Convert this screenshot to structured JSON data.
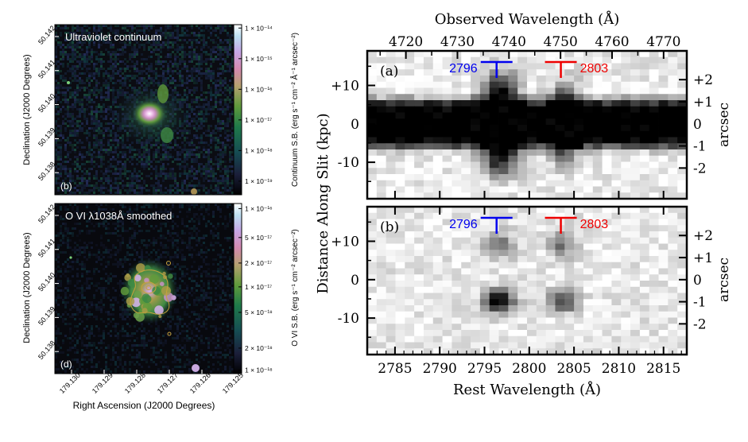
{
  "chart_data": [
    {
      "type": "heatmap",
      "panel": "(b)",
      "label": "Ultraviolet continuum",
      "xlabel": "",
      "ylabel": "Declination (J2000 Degrees)",
      "yticks": [
        "50.142",
        "50.141",
        "50.140",
        "50.139",
        "50.138"
      ],
      "colorbar_label": "Continuum S.B. (erg s⁻¹ cm⁻² Å⁻¹ arcsec⁻²)",
      "colorbar_ticks": [
        "1 × 10⁻¹⁴",
        "1 × 10⁻¹⁵",
        "1 × 10⁻¹⁶",
        "1 × 10⁻¹⁷",
        "1 × 10⁻¹⁸",
        "1 × 10⁻¹⁹"
      ],
      "colormap": [
        "#000000",
        "#1b1f3a",
        "#164c53",
        "#1f7a4a",
        "#5f9a3c",
        "#b6a070",
        "#d48ab0",
        "#c6a6e6",
        "#bcdff2",
        "#ffffff"
      ]
    },
    {
      "type": "heatmap",
      "panel": "(d)",
      "label": "O VI λ1038Å smoothed",
      "xlabel": "Right Ascension (J2000 Degrees)",
      "ylabel": "Declination (J2000 Degrees)",
      "xticks": [
        "179.130",
        "179.129",
        "179.128",
        "179.127",
        "179.126",
        "179.125"
      ],
      "yticks": [
        "50.142",
        "50.141",
        "50.140",
        "50.139",
        "50.138"
      ],
      "colorbar_label": "O VI S.B. (erg s⁻¹ cm⁻² arcsec⁻²)",
      "colorbar_ticks": [
        "1 × 10⁻¹⁶",
        "5 × 10⁻¹⁷",
        "2 × 10⁻¹⁷",
        "1 × 10⁻¹⁷",
        "5 × 10⁻¹⁸",
        "2 × 10⁻¹⁸",
        "1 × 10⁻¹⁸"
      ]
    },
    {
      "type": "heatmap",
      "panel": "(a)",
      "top_xlabel": "Observed Wavelength (Å)",
      "top_xticks": [
        4720,
        4730,
        4740,
        4750,
        4760,
        4770
      ],
      "top_xlim": [
        4712.5,
        4774.5
      ],
      "ylabel": "Distance Along Slit (kpc)",
      "yticks": [
        10,
        0,
        -10
      ],
      "ylim": [
        -19.5,
        19.0
      ],
      "right_ylabel": "arcsec",
      "right_yticks": [
        "+2",
        "+1",
        "0",
        "-1",
        "-2"
      ],
      "lines": [
        {
          "label": "2796",
          "rest_wavelength": 2796.35,
          "color": "#0000ee"
        },
        {
          "label": "2803",
          "rest_wavelength": 2803.53,
          "color": "#ee0000"
        }
      ]
    },
    {
      "type": "heatmap",
      "panel": "(b)",
      "xlabel": "Rest Wavelength (Å)",
      "xticks": [
        2785,
        2790,
        2795,
        2800,
        2805,
        2810,
        2815
      ],
      "xlim": [
        2781.9,
        2817.6
      ],
      "yticks": [
        10,
        0,
        -10
      ],
      "ylim": [
        -19.5,
        19.0
      ],
      "right_ylabel": "arcsec",
      "right_yticks": [
        "+2",
        "+1",
        "0",
        "-1",
        "-2"
      ],
      "lines": [
        {
          "label": "2796",
          "rest_wavelength": 2796.35,
          "color": "#0000ee"
        },
        {
          "label": "2803",
          "rest_wavelength": 2803.53,
          "color": "#ee0000"
        }
      ]
    }
  ]
}
